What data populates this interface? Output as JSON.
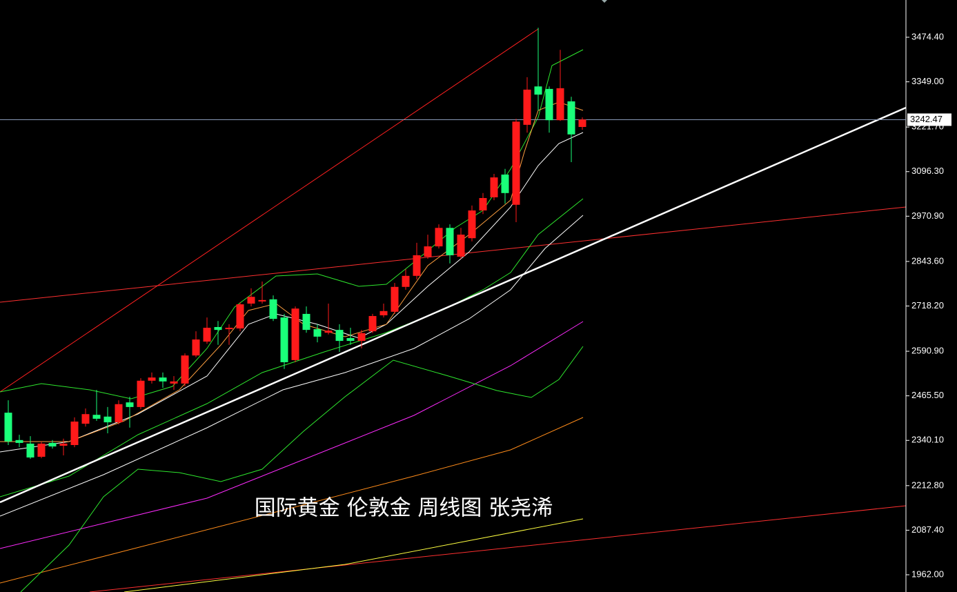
{
  "chart_data": {
    "type": "candlestick",
    "title": "国际黄金  伦敦金 周线图 张尧浠",
    "up_color": "#ff1a1a",
    "down_color": "#1aff7a",
    "ylim": [
      1913.5,
      3579.2
    ],
    "yticks": [
      {
        "value": 1962.0,
        "label": "1962.00"
      },
      {
        "value": 2087.4,
        "label": "2087.40"
      },
      {
        "value": 2212.8,
        "label": "2212.80"
      },
      {
        "value": 2340.1,
        "label": "2340.10"
      },
      {
        "value": 2465.5,
        "label": "2465.50"
      },
      {
        "value": 2590.9,
        "label": "2590.90"
      },
      {
        "value": 2718.2,
        "label": "2718.20"
      },
      {
        "value": 2843.6,
        "label": "2843.60"
      },
      {
        "value": 2970.9,
        "label": "2970.90"
      },
      {
        "value": 3096.3,
        "label": "3096.30"
      },
      {
        "value": 3221.7,
        "label": "3221.70"
      },
      {
        "value": 3349.0,
        "label": "3349.00"
      },
      {
        "value": 3474.4,
        "label": "3474.40"
      }
    ],
    "last_price": 3242.47,
    "open": [
      2418,
      2341,
      2331,
      2294,
      2333,
      2325,
      2327,
      2387,
      2412,
      2407,
      2391,
      2447,
      2434,
      2508,
      2517,
      2500,
      2500,
      2579,
      2618,
      2659,
      2653,
      2655,
      2725,
      2731,
      2737,
      2686,
      2566,
      2696,
      2653,
      2643,
      2651,
      2628,
      2620,
      2647,
      2692,
      2702,
      2772,
      2803,
      2857,
      2886,
      2938,
      2857,
      2909,
      2987,
      3024,
      3088,
      3003,
      3228,
      3336,
      3329,
      3241,
      3294,
      3222
    ],
    "high": [
      2453,
      2356,
      2352,
      2337,
      2341,
      2345,
      2405,
      2430,
      2482,
      2434,
      2453,
      2463,
      2515,
      2531,
      2531,
      2521,
      2585,
      2647,
      2686,
      2676,
      2667,
      2729,
      2768,
      2787,
      2748,
      2696,
      2717,
      2717,
      2667,
      2725,
      2667,
      2657,
      2651,
      2696,
      2725,
      2783,
      2822,
      2896,
      2919,
      2948,
      2948,
      2938,
      3001,
      3036,
      3090,
      3104,
      3245,
      3362,
      3501,
      3336,
      3439,
      3307,
      3249
    ],
    "low": [
      2327,
      2321,
      2288,
      2290,
      2317,
      2298,
      2321,
      2379,
      2395,
      2360,
      2385,
      2376,
      2428,
      2500,
      2488,
      2482,
      2492,
      2574,
      2612,
      2609,
      2609,
      2647,
      2717,
      2725,
      2676,
      2541,
      2560,
      2643,
      2616,
      2638,
      2589,
      2609,
      2599,
      2642,
      2686,
      2696,
      2764,
      2793,
      2851,
      2880,
      2838,
      2851,
      2900,
      2977,
      3016,
      3006,
      2954,
      3206,
      3268,
      3206,
      3239,
      3123,
      3214
    ],
    "close": [
      2337,
      2333,
      2292,
      2331,
      2323,
      2331,
      2393,
      2414,
      2401,
      2391,
      2442,
      2434,
      2508,
      2517,
      2506,
      2506,
      2579,
      2624,
      2657,
      2651,
      2657,
      2723,
      2744,
      2735,
      2682,
      2560,
      2711,
      2651,
      2632,
      2649,
      2620,
      2620,
      2642,
      2690,
      2704,
      2772,
      2803,
      2861,
      2886,
      2938,
      2861,
      2919,
      2987,
      3022,
      3080,
      3036,
      3237,
      3327,
      3313,
      3241,
      3331,
      3201,
      3243
    ]
  }
}
